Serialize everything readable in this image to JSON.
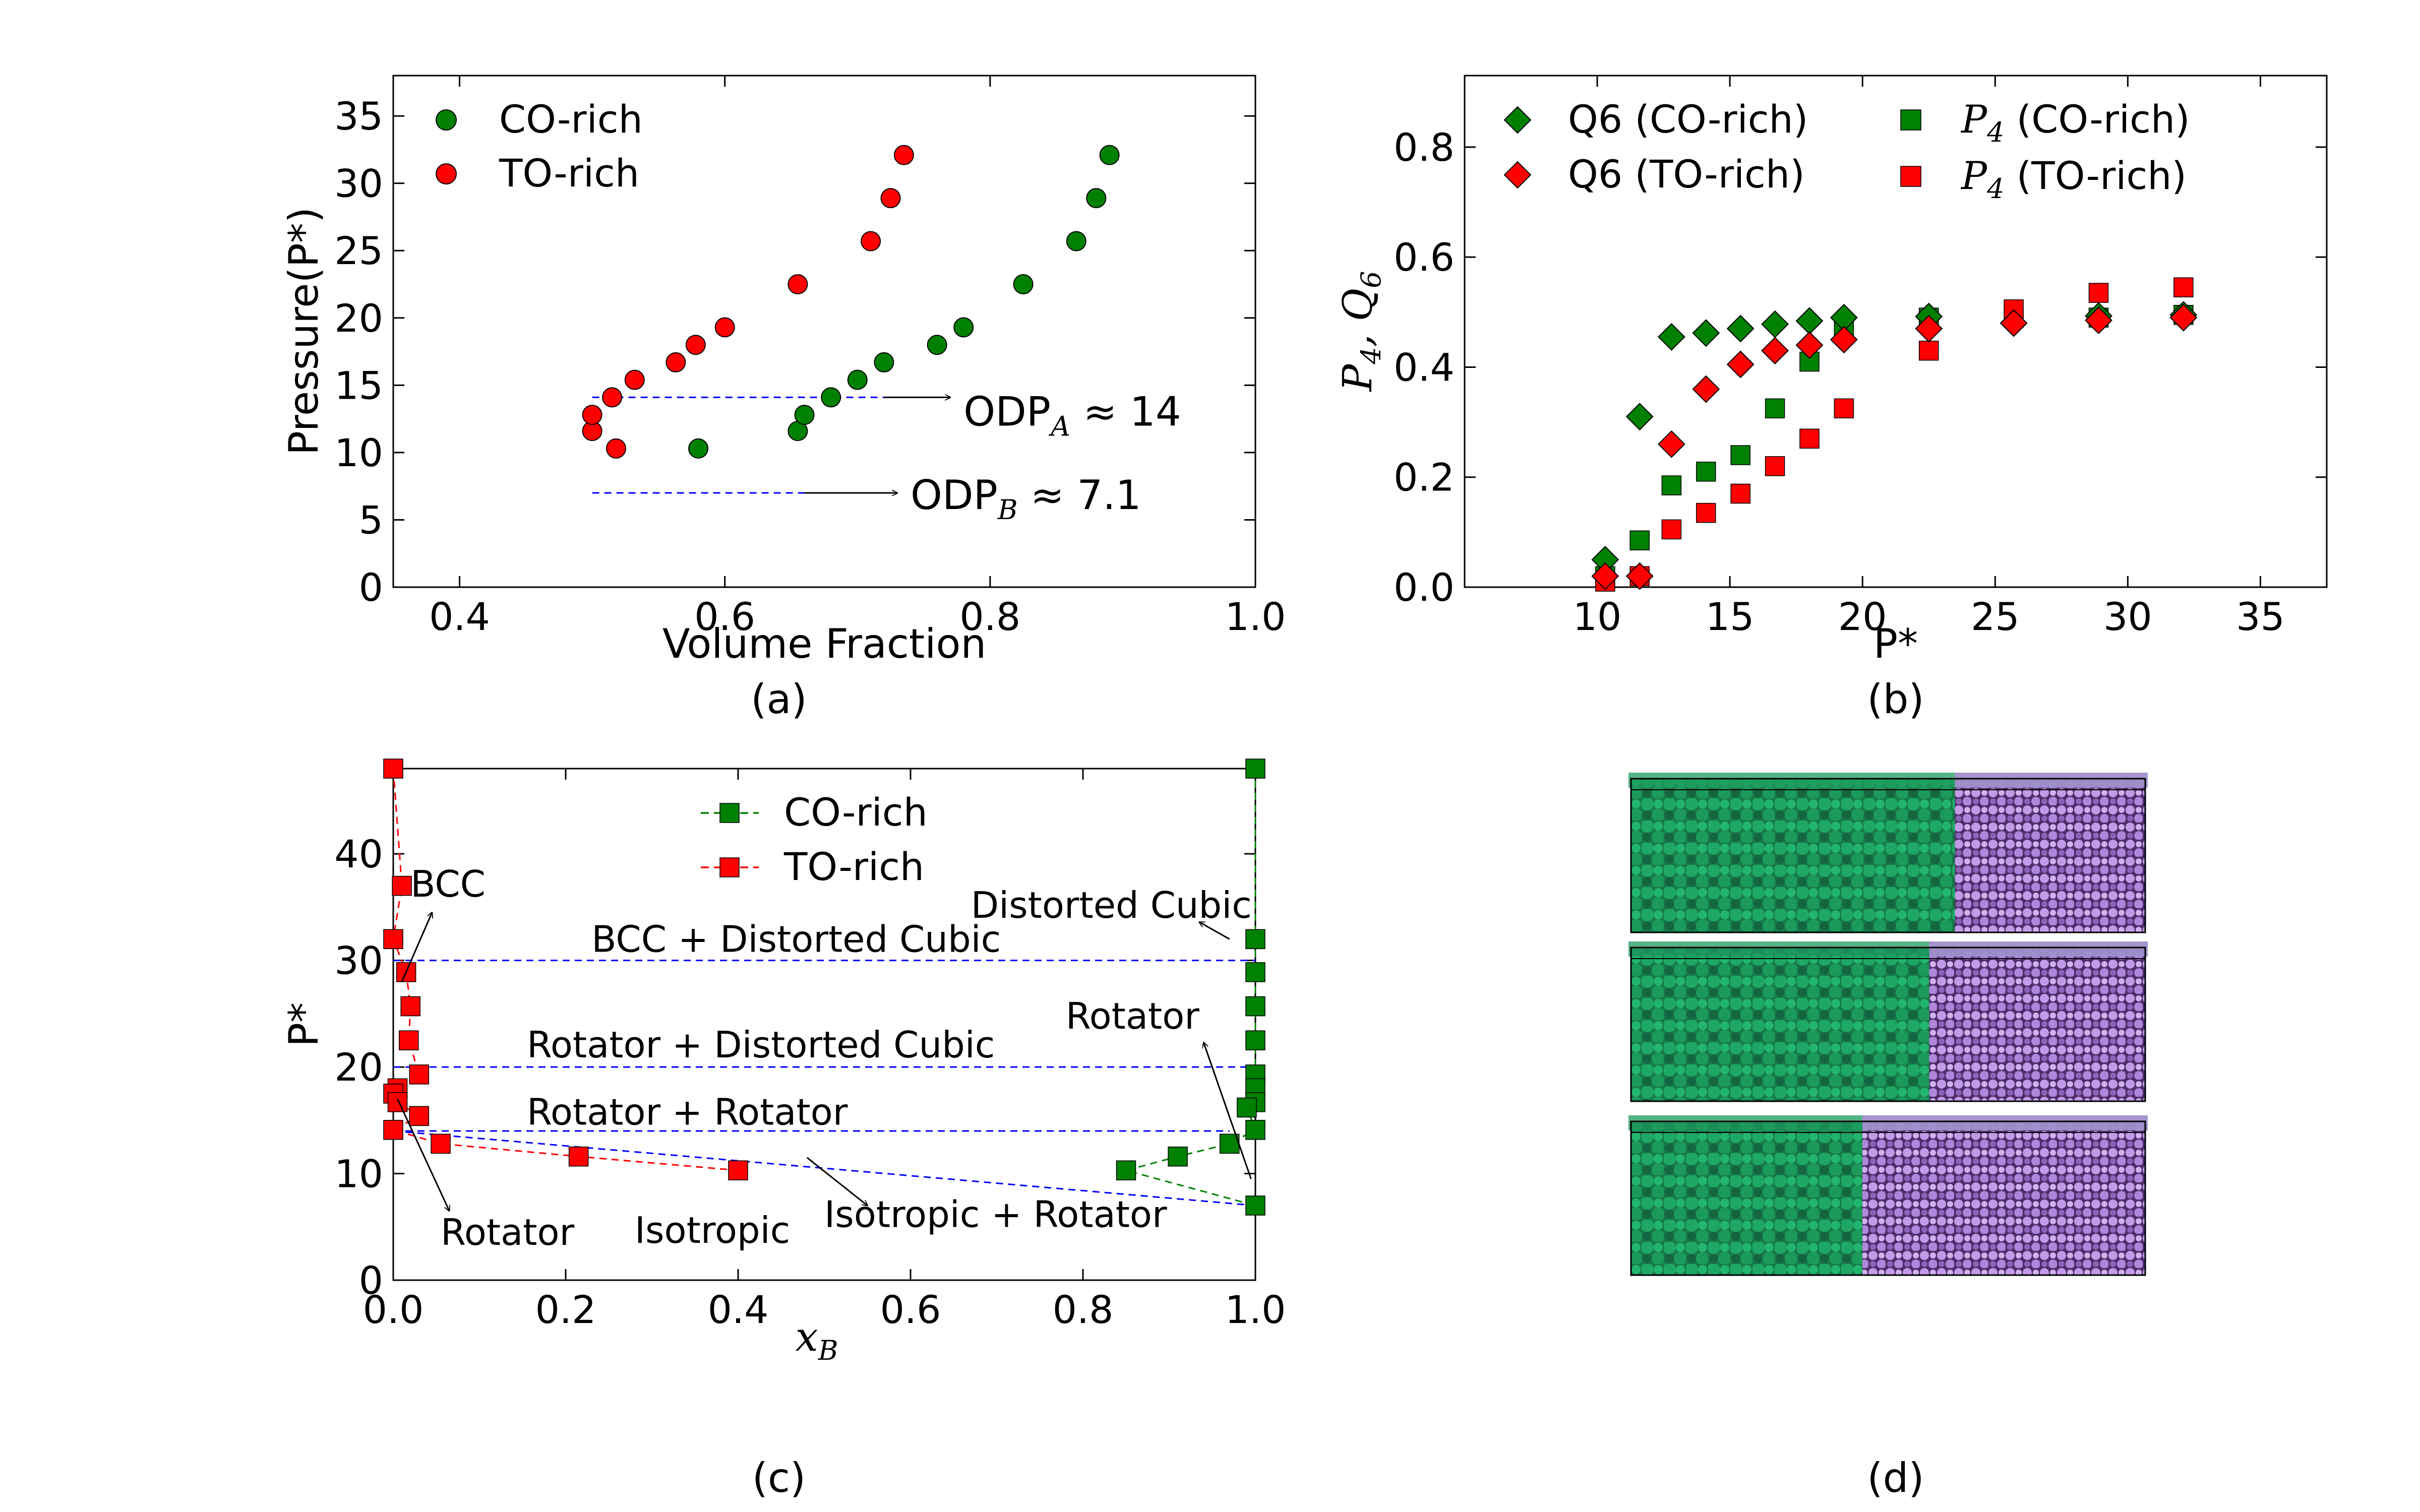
{
  "chart_data": [
    {
      "id": "a",
      "type": "scatter",
      "panel_label": "(a)",
      "xlabel": "Volume Fraction",
      "ylabel": "Pressure(P*)",
      "xlim": [
        0.35,
        1.0
      ],
      "ylim": [
        0,
        38
      ],
      "xticks": [
        0.4,
        0.6,
        0.8,
        1.0
      ],
      "xtick_labels": [
        "0.4",
        "0.6",
        "0.8",
        "1.0"
      ],
      "yticks": [
        0,
        5,
        10,
        15,
        20,
        25,
        30,
        35
      ],
      "ytick_labels": [
        "0",
        "5",
        "10",
        "15",
        "20",
        "25",
        "30",
        "35"
      ],
      "legend_position": "top-left",
      "series": [
        {
          "name": "CO-rich",
          "color": "#008000",
          "marker": "circle",
          "points": [
            [
              0.58,
              10.3
            ],
            [
              0.655,
              11.6
            ],
            [
              0.66,
              12.8
            ],
            [
              0.68,
              14.1
            ],
            [
              0.7,
              15.4
            ],
            [
              0.72,
              16.7
            ],
            [
              0.76,
              18.0
            ],
            [
              0.78,
              19.3
            ],
            [
              0.825,
              22.5
            ],
            [
              0.865,
              25.7
            ],
            [
              0.88,
              28.9
            ],
            [
              0.89,
              32.1
            ]
          ]
        },
        {
          "name": "TO-rich",
          "color": "#ff0000",
          "marker": "circle",
          "points": [
            [
              0.5,
              11.6
            ],
            [
              0.5,
              12.8
            ],
            [
              0.518,
              10.3
            ],
            [
              0.515,
              14.1
            ],
            [
              0.532,
              15.4
            ],
            [
              0.563,
              16.7
            ],
            [
              0.578,
              18.0
            ],
            [
              0.6,
              19.3
            ],
            [
              0.655,
              22.5
            ],
            [
              0.71,
              25.7
            ],
            [
              0.725,
              28.9
            ],
            [
              0.735,
              32.1
            ]
          ]
        }
      ],
      "reference_lines": [
        {
          "y": 14.1,
          "x_start": 0.5,
          "x_end": 0.72,
          "color": "#0000ff",
          "style": "dashed"
        },
        {
          "y": 7.0,
          "x_start": 0.5,
          "x_end": 0.66,
          "color": "#0000ff",
          "style": "dashed"
        }
      ],
      "annotations": [
        {
          "text": "ODP",
          "subscript": "A",
          "suffix": " ≈ 14",
          "arrow_from": [
            0.72,
            14.1
          ],
          "arrow_to": [
            0.77,
            14.1
          ],
          "text_at": [
            0.78,
            12.0
          ]
        },
        {
          "text": "ODP",
          "subscript": "B",
          "suffix": " ≈ 7.1",
          "arrow_from": [
            0.66,
            7.0
          ],
          "arrow_to": [
            0.73,
            7.0
          ],
          "text_at": [
            0.74,
            5.8
          ]
        }
      ]
    },
    {
      "id": "b",
      "type": "scatter",
      "panel_label": "(b)",
      "xlabel": "P*",
      "ylabel": "P4, Q6",
      "ylabel_parts": {
        "p": "P",
        "p_sub": "4",
        "sep": ", ",
        "q": "Q",
        "q_sub": "6"
      },
      "xlim": [
        5,
        37.5
      ],
      "ylim": [
        0,
        0.93
      ],
      "xticks": [
        10,
        15,
        20,
        25,
        30,
        35
      ],
      "xtick_labels": [
        "10",
        "15",
        "20",
        "25",
        "30",
        "35"
      ],
      "yticks": [
        0.0,
        0.2,
        0.4,
        0.6,
        0.8
      ],
      "ytick_labels": [
        "0.0",
        "0.2",
        "0.4",
        "0.6",
        "0.8"
      ],
      "legend_position": "top",
      "series": [
        {
          "name": "Q6 (CO-rich)",
          "color": "#008000",
          "marker": "diamond",
          "points": [
            [
              10.3,
              0.05
            ],
            [
              11.6,
              0.31
            ],
            [
              12.8,
              0.455
            ],
            [
              14.1,
              0.462
            ],
            [
              15.4,
              0.47
            ],
            [
              16.7,
              0.478
            ],
            [
              18.0,
              0.484
            ],
            [
              19.3,
              0.49
            ],
            [
              22.5,
              0.492
            ],
            [
              25.7,
              0.48
            ],
            [
              28.9,
              0.493
            ],
            [
              32.1,
              0.495
            ]
          ]
        },
        {
          "name": "Q6 (TO-rich)",
          "color": "#ff0000",
          "marker": "diamond",
          "points": [
            [
              10.3,
              0.02
            ],
            [
              11.6,
              0.02
            ],
            [
              12.8,
              0.26
            ],
            [
              14.1,
              0.36
            ],
            [
              15.4,
              0.405
            ],
            [
              16.7,
              0.43
            ],
            [
              18.0,
              0.44
            ],
            [
              19.3,
              0.45
            ],
            [
              22.5,
              0.47
            ],
            [
              25.7,
              0.48
            ],
            [
              28.9,
              0.485
            ],
            [
              32.1,
              0.49
            ]
          ]
        },
        {
          "name": "P4 (CO-rich)",
          "legend_prefix": "P",
          "legend_sub": "4",
          "legend_suffix": " (CO-rich)",
          "color": "#008000",
          "marker": "square",
          "points": [
            [
              10.3,
              0.02
            ],
            [
              11.6,
              0.085
            ],
            [
              12.8,
              0.185
            ],
            [
              14.1,
              0.21
            ],
            [
              15.4,
              0.24
            ],
            [
              16.7,
              0.325
            ],
            [
              18.0,
              0.41
            ],
            [
              19.3,
              0.47
            ],
            [
              22.5,
              0.49
            ],
            [
              25.7,
              0.49
            ],
            [
              28.9,
              0.49
            ],
            [
              32.1,
              0.495
            ]
          ]
        },
        {
          "name": "P4 (TO-rich)",
          "legend_prefix": "P",
          "legend_sub": "4",
          "legend_suffix": " (TO-rich)",
          "color": "#ff0000",
          "marker": "square",
          "points": [
            [
              10.3,
              0.01
            ],
            [
              11.6,
              0.02
            ],
            [
              12.8,
              0.105
            ],
            [
              14.1,
              0.135
            ],
            [
              15.4,
              0.17
            ],
            [
              16.7,
              0.22
            ],
            [
              18.0,
              0.27
            ],
            [
              19.3,
              0.325
            ],
            [
              22.5,
              0.43
            ],
            [
              25.7,
              0.505
            ],
            [
              28.9,
              0.535
            ],
            [
              32.1,
              0.545
            ]
          ]
        }
      ]
    },
    {
      "id": "c",
      "type": "line",
      "panel_label": "(c)",
      "xlabel": "x",
      "xlabel_sub": "B",
      "ylabel": "P*",
      "xlim": [
        0.0,
        1.0
      ],
      "ylim": [
        0,
        48
      ],
      "xticks": [
        0.0,
        0.2,
        0.4,
        0.6,
        0.8,
        1.0
      ],
      "xtick_labels": [
        "0.0",
        "0.2",
        "0.4",
        "0.6",
        "0.8",
        "1.0"
      ],
      "yticks": [
        0,
        10,
        20,
        30,
        40
      ],
      "ytick_labels": [
        "0",
        "10",
        "20",
        "30",
        "40"
      ],
      "legend_position": "top-center",
      "series": [
        {
          "name": "CO-rich",
          "color": "#008000",
          "marker": "square",
          "line": "dashed",
          "points": [
            [
              1.0,
              48.0
            ],
            [
              1.0,
              32.0
            ],
            [
              1.0,
              28.9
            ],
            [
              1.0,
              25.7
            ],
            [
              1.0,
              22.5
            ],
            [
              1.0,
              19.3
            ],
            [
              1.0,
              18.0
            ],
            [
              1.0,
              16.7
            ],
            [
              0.99,
              16.2
            ],
            [
              1.0,
              14.1
            ],
            [
              0.97,
              12.8
            ],
            [
              0.91,
              11.6
            ],
            [
              0.85,
              10.3
            ],
            [
              1.0,
              7.0
            ]
          ]
        },
        {
          "name": "TO-rich",
          "color": "#ff0000",
          "marker": "square",
          "line": "dashed",
          "points": [
            [
              0.0,
              48.0
            ],
            [
              0.01,
              37.0
            ],
            [
              0.0,
              32.0
            ],
            [
              0.015,
              28.9
            ],
            [
              0.02,
              25.7
            ],
            [
              0.018,
              22.5
            ],
            [
              0.03,
              19.3
            ],
            [
              0.005,
              18.0
            ],
            [
              0.0,
              17.5
            ],
            [
              0.005,
              16.7
            ],
            [
              0.03,
              15.4
            ],
            [
              0.0,
              14.1
            ],
            [
              0.055,
              12.8
            ],
            [
              0.215,
              11.6
            ],
            [
              0.4,
              10.3
            ]
          ]
        }
      ],
      "reference_lines": [
        {
          "y": 30.0,
          "x_start": 0.0,
          "x_end": 1.0,
          "color": "#0000ff",
          "style": "dashed"
        },
        {
          "y": 20.0,
          "x_start": 0.0,
          "x_end": 1.0,
          "color": "#0000ff",
          "style": "dashed"
        },
        {
          "y": 14.0,
          "x_start": 0.0,
          "x_end": 0.97,
          "color": "#0000ff",
          "style": "dashed"
        },
        {
          "y": 14.0,
          "x_start": 0.0,
          "x_end": 1.0,
          "y_end": 7.0,
          "color": "#0000ff",
          "style": "dashed"
        }
      ],
      "annotations": [
        {
          "text": "BCC",
          "text_at": [
            0.02,
            36.0
          ],
          "arrow_from": [
            0.01,
            28.0
          ],
          "arrow_to": [
            0.045,
            34.5
          ]
        },
        {
          "text": "BCC + Distorted Cubic",
          "text_at": [
            0.23,
            30.8
          ]
        },
        {
          "text": "Distorted Cubic",
          "text_at": [
            0.67,
            34.0
          ],
          "arrow_from": [
            0.97,
            32.0
          ],
          "arrow_to": [
            0.935,
            33.6
          ]
        },
        {
          "text": "Rotator + Distorted Cubic",
          "text_at": [
            0.155,
            20.9
          ]
        },
        {
          "text": "Rotator",
          "text_at": [
            0.78,
            23.6
          ],
          "arrow_from": [
            0.995,
            9.5
          ],
          "arrow_to": [
            0.94,
            22.3
          ]
        },
        {
          "text": "Rotator + Rotator",
          "text_at": [
            0.155,
            14.6
          ]
        },
        {
          "text": "Rotator",
          "text_at": [
            0.055,
            3.3
          ],
          "arrow_from": [
            0.005,
            17.0
          ],
          "arrow_to": [
            0.065,
            6.5
          ]
        },
        {
          "text": "Isotropic",
          "text_at": [
            0.28,
            3.5
          ]
        },
        {
          "text": "Isotropic + Rotator",
          "text_at": [
            0.5,
            5.0
          ],
          "arrow_from": [
            0.48,
            11.5
          ],
          "arrow_to": [
            0.55,
            7.0
          ]
        }
      ]
    },
    {
      "id": "d",
      "type": "image",
      "panel_label": "(d)",
      "colors": {
        "co_phase": "#1e9a5e",
        "to_phase": "#b98ce0"
      },
      "slabs": [
        {
          "co_fraction": 0.63
        },
        {
          "co_fraction": 0.58
        },
        {
          "co_fraction": 0.45
        }
      ]
    }
  ]
}
